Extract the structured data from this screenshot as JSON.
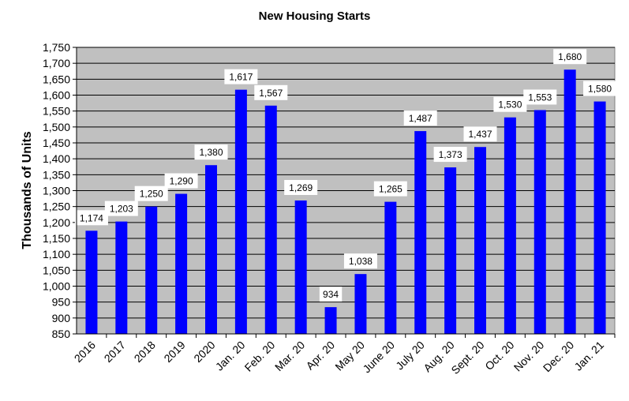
{
  "chart_data": {
    "type": "bar",
    "title": "New Housing Starts",
    "xlabel": "",
    "ylabel": "Thousands of Units",
    "ylim": [
      850,
      1750
    ],
    "ytick_step": 50,
    "grid": true,
    "legend": "none",
    "categories": [
      "2016",
      "2017",
      "2018",
      "2019",
      "2020",
      "Jan. 20",
      "Feb. 20",
      "Mar. 20",
      "Apr. 20",
      "May 20",
      "June 20",
      "July 20",
      "Aug. 20",
      "Sept. 20",
      "Oct. 20",
      "Nov. 20",
      "Dec. 20",
      "Jan. 21"
    ],
    "values": [
      1174,
      1203,
      1250,
      1290,
      1380,
      1617,
      1567,
      1269,
      934,
      1038,
      1265,
      1487,
      1373,
      1437,
      1530,
      1553,
      1680,
      1580
    ],
    "value_labels": [
      "1,174",
      "1,203",
      "1,250",
      "1,290",
      "1,380",
      "1,617",
      "1,567",
      "1,269",
      "934",
      "1,038",
      "1,265",
      "1,487",
      "1,373",
      "1,437",
      "1,530",
      "1,553",
      "1,680",
      "1,580"
    ],
    "colors": {
      "bar": "#0000ff",
      "plot_background": "#c0c0c0",
      "gridline": "#000000"
    }
  }
}
